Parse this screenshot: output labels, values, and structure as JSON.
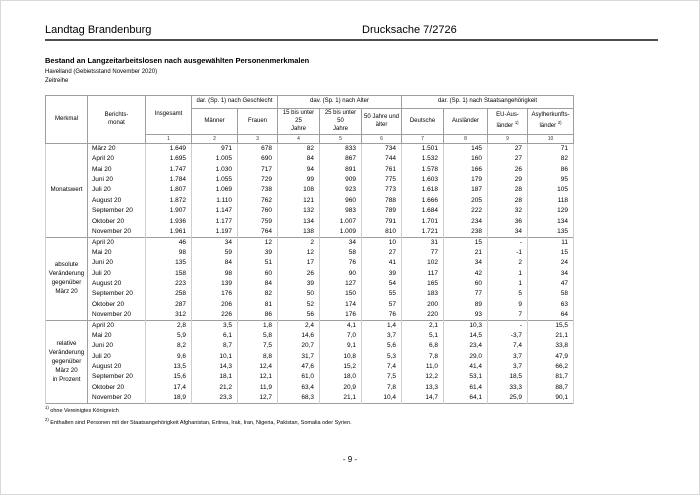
{
  "doc_header": {
    "left": "Landtag Brandenburg",
    "right": "Drucksache 7/2726"
  },
  "title_block": {
    "title": "Bestand an Langzeitarbeitslosen nach ausgewählten Personenmerkmalen",
    "region": "Havelland (Gebietsstand November 2020)",
    "series": "Zeitreihe"
  },
  "table": {
    "col_merkmal": "Merkmal",
    "col_berichtsmonat": "Berichts-\nmonat",
    "col_insgesamt": "Insgesamt",
    "groups": [
      {
        "label": "dar. (Sp. 1) nach Geschlecht",
        "cols": [
          {
            "label": "Männer"
          },
          {
            "label": "Frauen"
          }
        ]
      },
      {
        "label": "dav. (Sp. 1) nach Alter",
        "cols": [
          {
            "label": "15 bis unter 25\nJahre"
          },
          {
            "label": "25 bis unter 50\nJahre"
          },
          {
            "label": "50 Jahre und\nälter"
          }
        ]
      },
      {
        "label": "dar. (Sp. 1) nach Staatsangehörigkeit",
        "cols": [
          {
            "label": "Deutsche"
          },
          {
            "label": "Ausländer"
          },
          {
            "label": "EU-Aus-\nländer ",
            "sup": "1)"
          },
          {
            "label": "Asylherkunfts-\nländer ",
            "sup": "2)"
          }
        ]
      }
    ],
    "column_numbers": [
      "1",
      "2",
      "3",
      "4",
      "5",
      "6",
      "7",
      "8",
      "9",
      "10"
    ],
    "row_groups": [
      {
        "label": "Monatswert",
        "rows": [
          {
            "month": "März 20",
            "values": [
              "1.649",
              "971",
              "678",
              "82",
              "833",
              "734",
              "1.501",
              "145",
              "27",
              "71"
            ]
          },
          {
            "month": "April 20",
            "values": [
              "1.695",
              "1.005",
              "690",
              "84",
              "867",
              "744",
              "1.532",
              "160",
              "27",
              "82"
            ]
          },
          {
            "month": "Mai 20",
            "values": [
              "1.747",
              "1.030",
              "717",
              "94",
              "891",
              "761",
              "1.578",
              "166",
              "26",
              "86"
            ]
          },
          {
            "month": "Juni 20",
            "values": [
              "1.784",
              "1.055",
              "729",
              "99",
              "909",
              "775",
              "1.603",
              "179",
              "29",
              "95"
            ]
          },
          {
            "month": "Juli 20",
            "values": [
              "1.807",
              "1.069",
              "738",
              "108",
              "923",
              "773",
              "1.618",
              "187",
              "28",
              "105"
            ]
          },
          {
            "month": "August 20",
            "values": [
              "1.872",
              "1.110",
              "762",
              "121",
              "960",
              "788",
              "1.666",
              "205",
              "28",
              "118"
            ]
          },
          {
            "month": "September 20",
            "values": [
              "1.907",
              "1.147",
              "760",
              "132",
              "983",
              "789",
              "1.684",
              "222",
              "32",
              "129"
            ]
          },
          {
            "month": "Oktober 20",
            "values": [
              "1.936",
              "1.177",
              "759",
              "134",
              "1.007",
              "791",
              "1.701",
              "234",
              "36",
              "134"
            ]
          },
          {
            "month": "November 20",
            "values": [
              "1.961",
              "1.197",
              "764",
              "138",
              "1.009",
              "810",
              "1.721",
              "238",
              "34",
              "135"
            ]
          }
        ]
      },
      {
        "label": "absolute\nVeränderung\ngegenüber\nMärz 20",
        "rows": [
          {
            "month": "April 20",
            "values": [
              "46",
              "34",
              "12",
              "2",
              "34",
              "10",
              "31",
              "15",
              "-",
              "11"
            ]
          },
          {
            "month": "Mai 20",
            "values": [
              "98",
              "59",
              "39",
              "12",
              "58",
              "27",
              "77",
              "21",
              "-1",
              "15"
            ]
          },
          {
            "month": "Juni 20",
            "values": [
              "135",
              "84",
              "51",
              "17",
              "76",
              "41",
              "102",
              "34",
              "2",
              "24"
            ]
          },
          {
            "month": "Juli 20",
            "values": [
              "158",
              "98",
              "60",
              "26",
              "90",
              "39",
              "117",
              "42",
              "1",
              "34"
            ]
          },
          {
            "month": "August 20",
            "values": [
              "223",
              "139",
              "84",
              "39",
              "127",
              "54",
              "165",
              "60",
              "1",
              "47"
            ]
          },
          {
            "month": "September 20",
            "values": [
              "258",
              "176",
              "82",
              "50",
              "150",
              "55",
              "183",
              "77",
              "5",
              "58"
            ]
          },
          {
            "month": "Oktober 20",
            "values": [
              "287",
              "206",
              "81",
              "52",
              "174",
              "57",
              "200",
              "89",
              "9",
              "63"
            ]
          },
          {
            "month": "November 20",
            "values": [
              "312",
              "226",
              "86",
              "56",
              "176",
              "76",
              "220",
              "93",
              "7",
              "64"
            ]
          }
        ]
      },
      {
        "label": "relative\nVeränderung\ngegenüber\nMärz 20\nin Prozent",
        "rows": [
          {
            "month": "April 20",
            "values": [
              "2,8",
              "3,5",
              "1,8",
              "2,4",
              "4,1",
              "1,4",
              "2,1",
              "10,3",
              "-",
              "15,5"
            ]
          },
          {
            "month": "Mai 20",
            "values": [
              "5,9",
              "6,1",
              "5,8",
              "14,6",
              "7,0",
              "3,7",
              "5,1",
              "14,5",
              "-3,7",
              "21,1"
            ]
          },
          {
            "month": "Juni 20",
            "values": [
              "8,2",
              "8,7",
              "7,5",
              "20,7",
              "9,1",
              "5,6",
              "6,8",
              "23,4",
              "7,4",
              "33,8"
            ]
          },
          {
            "month": "Juli 20",
            "values": [
              "9,6",
              "10,1",
              "8,8",
              "31,7",
              "10,8",
              "5,3",
              "7,8",
              "29,0",
              "3,7",
              "47,9"
            ]
          },
          {
            "month": "August 20",
            "values": [
              "13,5",
              "14,3",
              "12,4",
              "47,6",
              "15,2",
              "7,4",
              "11,0",
              "41,4",
              "3,7",
              "66,2"
            ]
          },
          {
            "month": "September 20",
            "values": [
              "15,6",
              "18,1",
              "12,1",
              "61,0",
              "18,0",
              "7,5",
              "12,2",
              "53,1",
              "18,5",
              "81,7"
            ]
          },
          {
            "month": "Oktober 20",
            "values": [
              "17,4",
              "21,2",
              "11,9",
              "63,4",
              "20,9",
              "7,8",
              "13,3",
              "61,4",
              "33,3",
              "88,7"
            ]
          },
          {
            "month": "November 20",
            "values": [
              "18,9",
              "23,3",
              "12,7",
              "68,3",
              "21,1",
              "10,4",
              "14,7",
              "64,1",
              "25,9",
              "90,1"
            ]
          }
        ]
      }
    ],
    "footnotes": [
      {
        "marker": "1)",
        "text": " ohne Vereinigtes Königreich"
      },
      {
        "marker": "2)",
        "text": " Enthalten sind Personen mit der Staatsangehörigkeit Afghanistan, Eritrea, Irak, Iran, Nigeria, Pakistan, Somalia oder Syrien."
      }
    ]
  },
  "footer": {
    "page_number": "- 9 -"
  }
}
